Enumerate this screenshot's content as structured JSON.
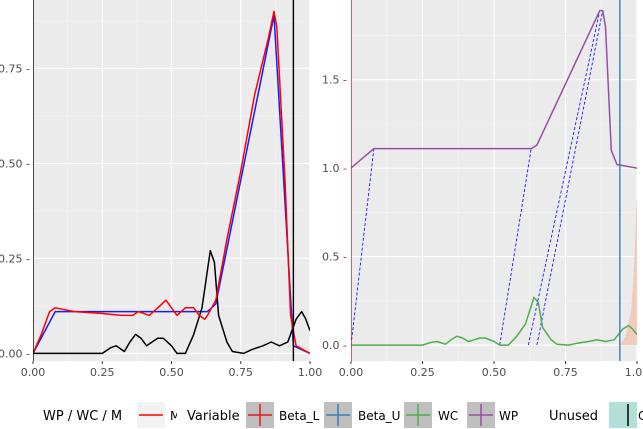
{
  "chart_data": [
    {
      "type": "line",
      "title": "",
      "xlabel": "",
      "ylabel": "",
      "xlim": [
        0,
        1
      ],
      "ylim": [
        -0.02,
        0.93
      ],
      "x_ticks": [
        0,
        0.25,
        0.5,
        0.75,
        1
      ],
      "x_tick_labels": [
        "0.00",
        "0.25",
        "0.50",
        "0.75",
        "1.00"
      ],
      "y_ticks": [
        0,
        0.25,
        0.5,
        0.75
      ],
      "y_tick_labels": [
        "0.00 -",
        "0.25 -",
        "0.50 -",
        "0.75 -"
      ],
      "grid": true,
      "vlines": [
        {
          "x": 0.0,
          "color": "#000000"
        },
        {
          "x": 0.94,
          "color": "#000000"
        }
      ],
      "series": [
        {
          "color": "#1a1aff",
          "points": [
            [
              0,
              0
            ],
            [
              0.08,
              0.11
            ],
            [
              0.63,
              0.11
            ],
            [
              0.66,
              0.13
            ],
            [
              0.87,
              0.89
            ],
            [
              0.94,
              0.02
            ],
            [
              1.0,
              0.0
            ]
          ]
        },
        {
          "color": "#000000",
          "points": [
            [
              0,
              0
            ],
            [
              0.05,
              0
            ],
            [
              0.1,
              0
            ],
            [
              0.2,
              0
            ],
            [
              0.25,
              0.0
            ],
            [
              0.28,
              0.015
            ],
            [
              0.3,
              0.02
            ],
            [
              0.33,
              0.005
            ],
            [
              0.35,
              0.03
            ],
            [
              0.37,
              0.05
            ],
            [
              0.39,
              0.04
            ],
            [
              0.41,
              0.02
            ],
            [
              0.43,
              0.03
            ],
            [
              0.45,
              0.04
            ],
            [
              0.47,
              0.04
            ],
            [
              0.5,
              0.02
            ],
            [
              0.52,
              0.0
            ],
            [
              0.55,
              0.0
            ],
            [
              0.58,
              0.05
            ],
            [
              0.61,
              0.12
            ],
            [
              0.63,
              0.22
            ],
            [
              0.64,
              0.27
            ],
            [
              0.655,
              0.24
            ],
            [
              0.67,
              0.1
            ],
            [
              0.7,
              0.03
            ],
            [
              0.72,
              0.005
            ],
            [
              0.76,
              0.0
            ],
            [
              0.79,
              0.01
            ],
            [
              0.83,
              0.02
            ],
            [
              0.86,
              0.03
            ],
            [
              0.89,
              0.02
            ],
            [
              0.92,
              0.03
            ],
            [
              0.95,
              0.09
            ],
            [
              0.97,
              0.11
            ],
            [
              0.985,
              0.09
            ],
            [
              1.0,
              0.06
            ]
          ]
        },
        {
          "color": "#ff0000",
          "points": [
            [
              0,
              0
            ],
            [
              0.03,
              0.05
            ],
            [
              0.06,
              0.11
            ],
            [
              0.08,
              0.12
            ],
            [
              0.15,
              0.11
            ],
            [
              0.25,
              0.105
            ],
            [
              0.32,
              0.1
            ],
            [
              0.36,
              0.1
            ],
            [
              0.38,
              0.11
            ],
            [
              0.42,
              0.1
            ],
            [
              0.45,
              0.12
            ],
            [
              0.48,
              0.14
            ],
            [
              0.5,
              0.12
            ],
            [
              0.52,
              0.1
            ],
            [
              0.55,
              0.12
            ],
            [
              0.58,
              0.12
            ],
            [
              0.6,
              0.1
            ],
            [
              0.62,
              0.09
            ],
            [
              0.63,
              0.1
            ],
            [
              0.66,
              0.14
            ],
            [
              0.7,
              0.3
            ],
            [
              0.75,
              0.48
            ],
            [
              0.8,
              0.68
            ],
            [
              0.85,
              0.83
            ],
            [
              0.87,
              0.9
            ],
            [
              0.88,
              0.86
            ],
            [
              0.91,
              0.45
            ],
            [
              0.93,
              0.1
            ],
            [
              0.95,
              0.02
            ],
            [
              1.0,
              0.0
            ]
          ]
        }
      ]
    },
    {
      "type": "line",
      "title": "",
      "xlabel": "",
      "ylabel": "",
      "xlim": [
        0,
        1
      ],
      "ylim": [
        -0.09,
        1.95
      ],
      "x_ticks": [
        0,
        0.25,
        0.5,
        0.75,
        1
      ],
      "x_tick_labels": [
        "0.00",
        "0.25",
        "0.50",
        "0.75",
        "1.00"
      ],
      "y_ticks": [
        0,
        0.5,
        1.0,
        1.5
      ],
      "y_tick_labels": [
        "0.0 -",
        "0.5 -",
        "1.0 -",
        "1.5 -"
      ],
      "grid": true,
      "vlines": [
        {
          "x": 0.0,
          "color": "#e41a1c"
        },
        {
          "x": 0.94,
          "color": "#377eb8"
        }
      ],
      "shaded_region": {
        "color": "#f4c8b8",
        "points": [
          [
            0.94,
            0
          ],
          [
            0.96,
            0.05
          ],
          [
            0.98,
            0.2
          ],
          [
            0.99,
            0.45
          ],
          [
            1.0,
            0.85
          ],
          [
            1.0,
            0.0
          ]
        ]
      },
      "series": [
        {
          "name": "WC",
          "color": "#4daf4a",
          "points": [
            [
              0,
              0
            ],
            [
              0.1,
              0
            ],
            [
              0.2,
              0
            ],
            [
              0.25,
              0.0
            ],
            [
              0.28,
              0.015
            ],
            [
              0.3,
              0.02
            ],
            [
              0.33,
              0.005
            ],
            [
              0.35,
              0.03
            ],
            [
              0.37,
              0.05
            ],
            [
              0.39,
              0.04
            ],
            [
              0.41,
              0.02
            ],
            [
              0.43,
              0.03
            ],
            [
              0.45,
              0.04
            ],
            [
              0.47,
              0.04
            ],
            [
              0.5,
              0.02
            ],
            [
              0.52,
              0.0
            ],
            [
              0.55,
              0.0
            ],
            [
              0.58,
              0.05
            ],
            [
              0.61,
              0.12
            ],
            [
              0.63,
              0.22
            ],
            [
              0.64,
              0.27
            ],
            [
              0.655,
              0.24
            ],
            [
              0.67,
              0.1
            ],
            [
              0.7,
              0.03
            ],
            [
              0.72,
              0.005
            ],
            [
              0.76,
              0.0
            ],
            [
              0.79,
              0.01
            ],
            [
              0.83,
              0.02
            ],
            [
              0.86,
              0.03
            ],
            [
              0.89,
              0.02
            ],
            [
              0.92,
              0.03
            ],
            [
              0.95,
              0.09
            ],
            [
              0.97,
              0.11
            ],
            [
              0.985,
              0.09
            ],
            [
              1.0,
              0.06
            ]
          ]
        },
        {
          "name": "WP",
          "color": "#984ea3",
          "points": [
            [
              0,
              1.0
            ],
            [
              0.08,
              1.11
            ],
            [
              0.63,
              1.11
            ],
            [
              0.65,
              1.13
            ],
            [
              0.87,
              1.89
            ],
            [
              0.88,
              1.89
            ],
            [
              0.89,
              1.8
            ],
            [
              0.91,
              1.1
            ],
            [
              0.93,
              1.02
            ],
            [
              1.0,
              1.0
            ]
          ]
        }
      ],
      "dashed_segments": {
        "color": "#1a1aff",
        "segments": [
          [
            [
              0.0,
              0.0
            ],
            [
              0.08,
              1.11
            ]
          ],
          [
            [
              0.52,
              0.0
            ],
            [
              0.63,
              1.11
            ]
          ],
          [
            [
              0.62,
              0.0
            ],
            [
              0.87,
              1.89
            ]
          ],
          [
            [
              0.65,
              0.0
            ],
            [
              0.88,
              1.89
            ]
          ]
        ]
      }
    }
  ],
  "legend": {
    "groups": [
      {
        "title": "WP / WC / M",
        "items": [
          {
            "label": "M",
            "color": "#ff0000",
            "kind": "line"
          }
        ]
      },
      {
        "title": "Variable",
        "items": [
          {
            "label": "Beta_L",
            "color": "#e41a1c",
            "kind": "box"
          },
          {
            "label": "Beta_U",
            "color": "#377eb8",
            "kind": "box"
          },
          {
            "label": "WC",
            "color": "#4daf4a",
            "kind": "box"
          },
          {
            "label": "WP",
            "color": "#984ea3",
            "kind": "box"
          }
        ]
      },
      {
        "title": "Unused",
        "items": [
          {
            "label": "C",
            "color": "#b2dfd7",
            "kind": "fill"
          }
        ]
      }
    ]
  }
}
